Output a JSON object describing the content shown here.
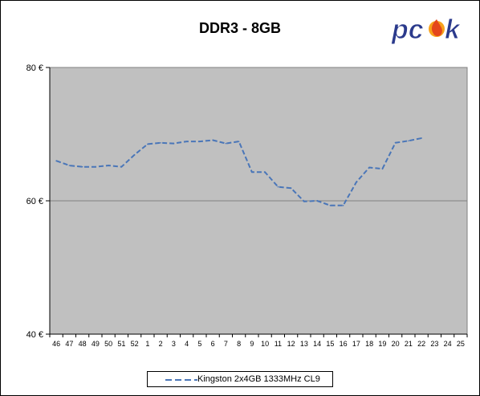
{
  "chart_data": {
    "type": "line",
    "title": "DDR3 - 8GB",
    "xlabel": "",
    "ylabel": "",
    "categories": [
      "46",
      "47",
      "48",
      "49",
      "50",
      "51",
      "52",
      "1",
      "2",
      "3",
      "4",
      "5",
      "6",
      "7",
      "8",
      "9",
      "10",
      "11",
      "12",
      "13",
      "14",
      "15",
      "16",
      "17",
      "18",
      "19",
      "20",
      "21",
      "22",
      "23",
      "24",
      "25"
    ],
    "ylim": [
      40,
      80
    ],
    "yticks": [
      40,
      60,
      80
    ],
    "ytick_labels": [
      "40 €",
      "60 €",
      "80 €"
    ],
    "grid": true,
    "legend_position": "bottom",
    "series": [
      {
        "name": "Kingston 2x4GB 1333MHz CL9",
        "color": "#4a76b8",
        "style": "dashed",
        "values": [
          66.0,
          65.3,
          65.1,
          65.1,
          65.3,
          65.1,
          66.9,
          68.5,
          68.7,
          68.6,
          68.9,
          68.9,
          69.1,
          68.6,
          68.9,
          64.3,
          64.3,
          62.1,
          61.9,
          59.9,
          60.0,
          59.3,
          59.3,
          62.8,
          65.0,
          64.8,
          68.7,
          69.0,
          69.4,
          null,
          null,
          null
        ]
      }
    ]
  },
  "colors": {
    "plot_background": "#c0c0c0",
    "series_line": "#4a76b8"
  },
  "logo": {
    "text": "pcsk"
  }
}
